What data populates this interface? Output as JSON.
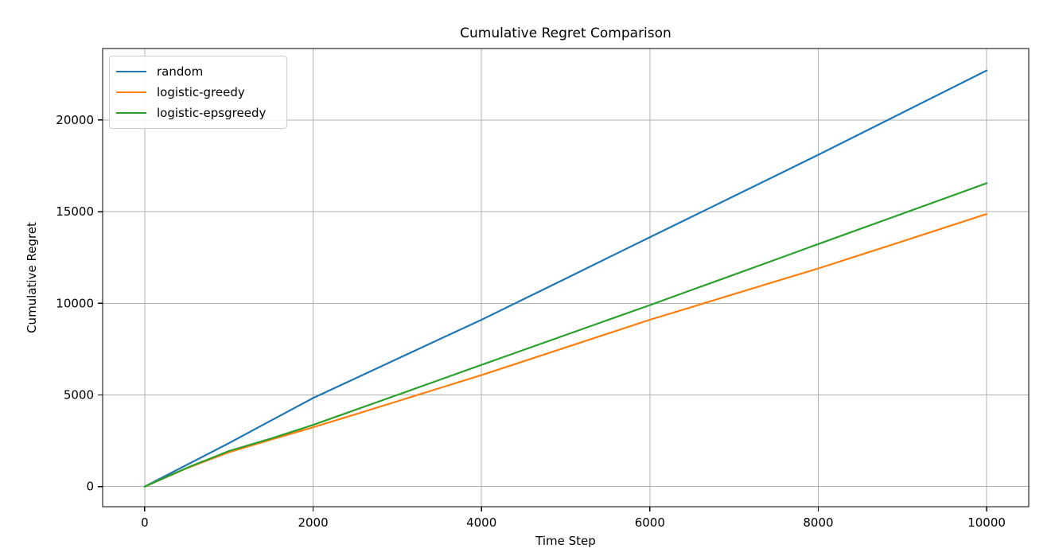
{
  "chart_data": {
    "type": "line",
    "title": "Cumulative Regret Comparison",
    "xlabel": "Time Step",
    "ylabel": "Cumulative Regret",
    "x": [
      0,
      500,
      1000,
      1500,
      2000,
      2500,
      3000,
      3500,
      4000,
      4500,
      5000,
      5500,
      6000,
      6500,
      7000,
      7500,
      8000,
      8500,
      9000,
      9500,
      10000
    ],
    "series": [
      {
        "name": "random",
        "color": "#1f77b4",
        "values": [
          0,
          1185,
          2370,
          3600,
          4830,
          5900,
          6970,
          8035,
          9100,
          10225,
          11350,
          12475,
          13600,
          14725,
          15850,
          16975,
          18100,
          19250,
          20400,
          21550,
          22700
        ]
      },
      {
        "name": "logistic-greedy",
        "color": "#ff7f0e",
        "values": [
          0,
          1000,
          1870,
          2560,
          3230,
          3940,
          4650,
          5365,
          6080,
          6835,
          7590,
          8345,
          9100,
          9800,
          10500,
          11200,
          11900,
          12640,
          13380,
          14125,
          14870
        ]
      },
      {
        "name": "logistic-epsgreedy",
        "color": "#2ca02c",
        "values": [
          0,
          1020,
          1940,
          2620,
          3360,
          4180,
          5000,
          5820,
          6640,
          7455,
          8270,
          9085,
          9900,
          10730,
          11560,
          12395,
          13230,
          14060,
          14890,
          15720,
          16550
        ]
      }
    ],
    "xticks": [
      0,
      2000,
      4000,
      6000,
      8000,
      10000
    ],
    "xtick_labels": [
      "0",
      "2000",
      "4000",
      "6000",
      "8000",
      "10000"
    ],
    "yticks": [
      0,
      5000,
      10000,
      15000,
      20000
    ],
    "ytick_labels": [
      "0",
      "5000",
      "10000",
      "15000",
      "20000"
    ],
    "xlim": [
      -500,
      10500
    ],
    "ylim": [
      -1100,
      23900
    ],
    "grid": true,
    "legend_position": "upper left",
    "grid_color": "#b0b0b0",
    "spine_color": "#000000",
    "text_color": "#000000",
    "background": "#ffffff"
  }
}
